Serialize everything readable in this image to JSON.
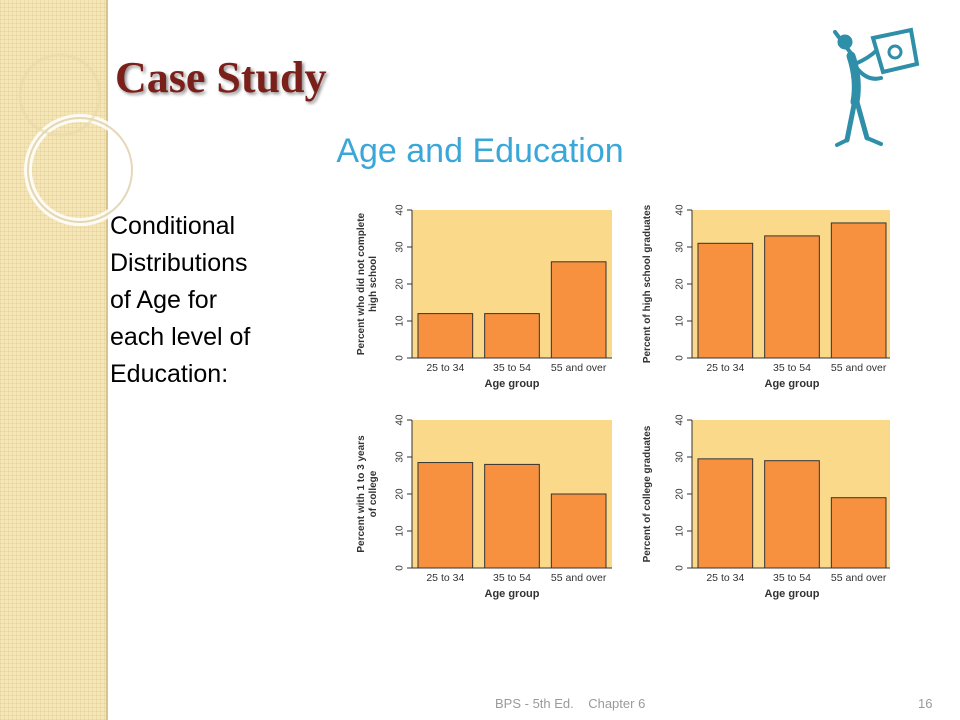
{
  "slide": {
    "title": "Case Study",
    "subtitle": "Age and Education",
    "body_lines": [
      "Conditional",
      "Distributions",
      "of Age for",
      "each level of",
      "Education:"
    ],
    "footer_text": "BPS - 5th Ed.    Chapter 6",
    "page_number": "16"
  },
  "colors": {
    "title": "#7a1f1a",
    "subtitle": "#3ba7d8",
    "plot_bg": "#fbd98b",
    "bar": "#f7913f",
    "bar_stroke": "#333333",
    "mascot": "#2f8fa8"
  },
  "chart_data": [
    {
      "type": "bar",
      "categories": [
        "25 to 34",
        "35 to 54",
        "55 and over"
      ],
      "values": [
        12,
        12,
        26
      ],
      "xlabel": "Age group",
      "ylabel_lines": [
        "Percent who did not complete",
        "high school"
      ],
      "ylim": [
        0,
        40
      ],
      "yticks": [
        "0",
        "10",
        "20",
        "30",
        "40"
      ]
    },
    {
      "type": "bar",
      "categories": [
        "25 to 34",
        "35 to 54",
        "55 and over"
      ],
      "values": [
        31,
        33,
        36.5
      ],
      "xlabel": "Age group",
      "ylabel_lines": [
        "Percent of high school graduates"
      ],
      "ylim": [
        0,
        40
      ],
      "yticks": [
        "0",
        "10",
        "20",
        "30",
        "40"
      ]
    },
    {
      "type": "bar",
      "categories": [
        "25 to 34",
        "35 to 54",
        "55 and over"
      ],
      "values": [
        28.5,
        28,
        20
      ],
      "xlabel": "Age group",
      "ylabel_lines": [
        "Percent with 1 to 3 years",
        "of college"
      ],
      "ylim": [
        0,
        40
      ],
      "yticks": [
        "0",
        "10",
        "20",
        "30",
        "40"
      ]
    },
    {
      "type": "bar",
      "categories": [
        "25 to 34",
        "35 to 54",
        "55 and over"
      ],
      "values": [
        29.5,
        29,
        19
      ],
      "xlabel": "Age group",
      "ylabel_lines": [
        "Percent of college graduates"
      ],
      "ylim": [
        0,
        40
      ],
      "yticks": [
        "0",
        "10",
        "20",
        "30",
        "40"
      ]
    }
  ]
}
